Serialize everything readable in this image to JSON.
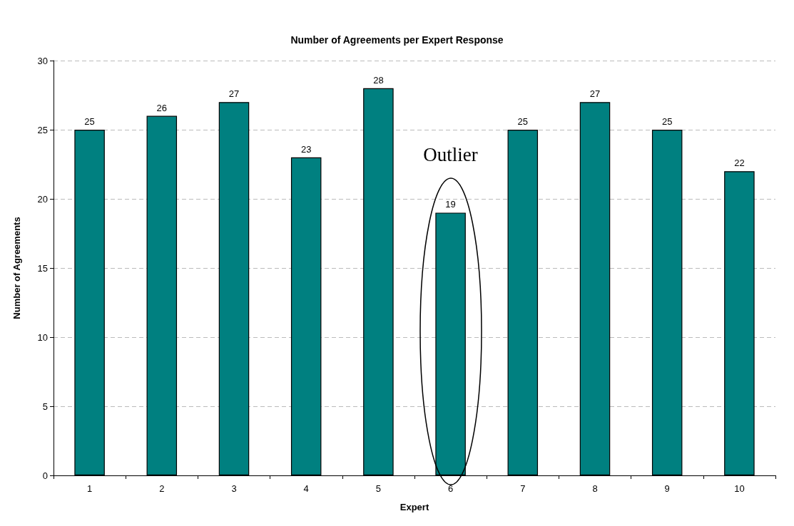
{
  "chart_data": {
    "type": "bar",
    "title": "Number of Agreements per Expert Response",
    "xlabel": "Expert",
    "ylabel": "Number of Agreements",
    "categories": [
      "1",
      "2",
      "3",
      "4",
      "5",
      "6",
      "7",
      "8",
      "9",
      "10"
    ],
    "values": [
      25,
      26,
      27,
      23,
      28,
      19,
      25,
      27,
      25,
      22
    ],
    "color": "#008080",
    "ylim": [
      0,
      30
    ],
    "yticks": [
      0,
      5,
      10,
      15,
      20,
      25,
      30
    ],
    "grid": "y",
    "data_labels": true,
    "annotations": [
      "Outlier"
    ]
  }
}
